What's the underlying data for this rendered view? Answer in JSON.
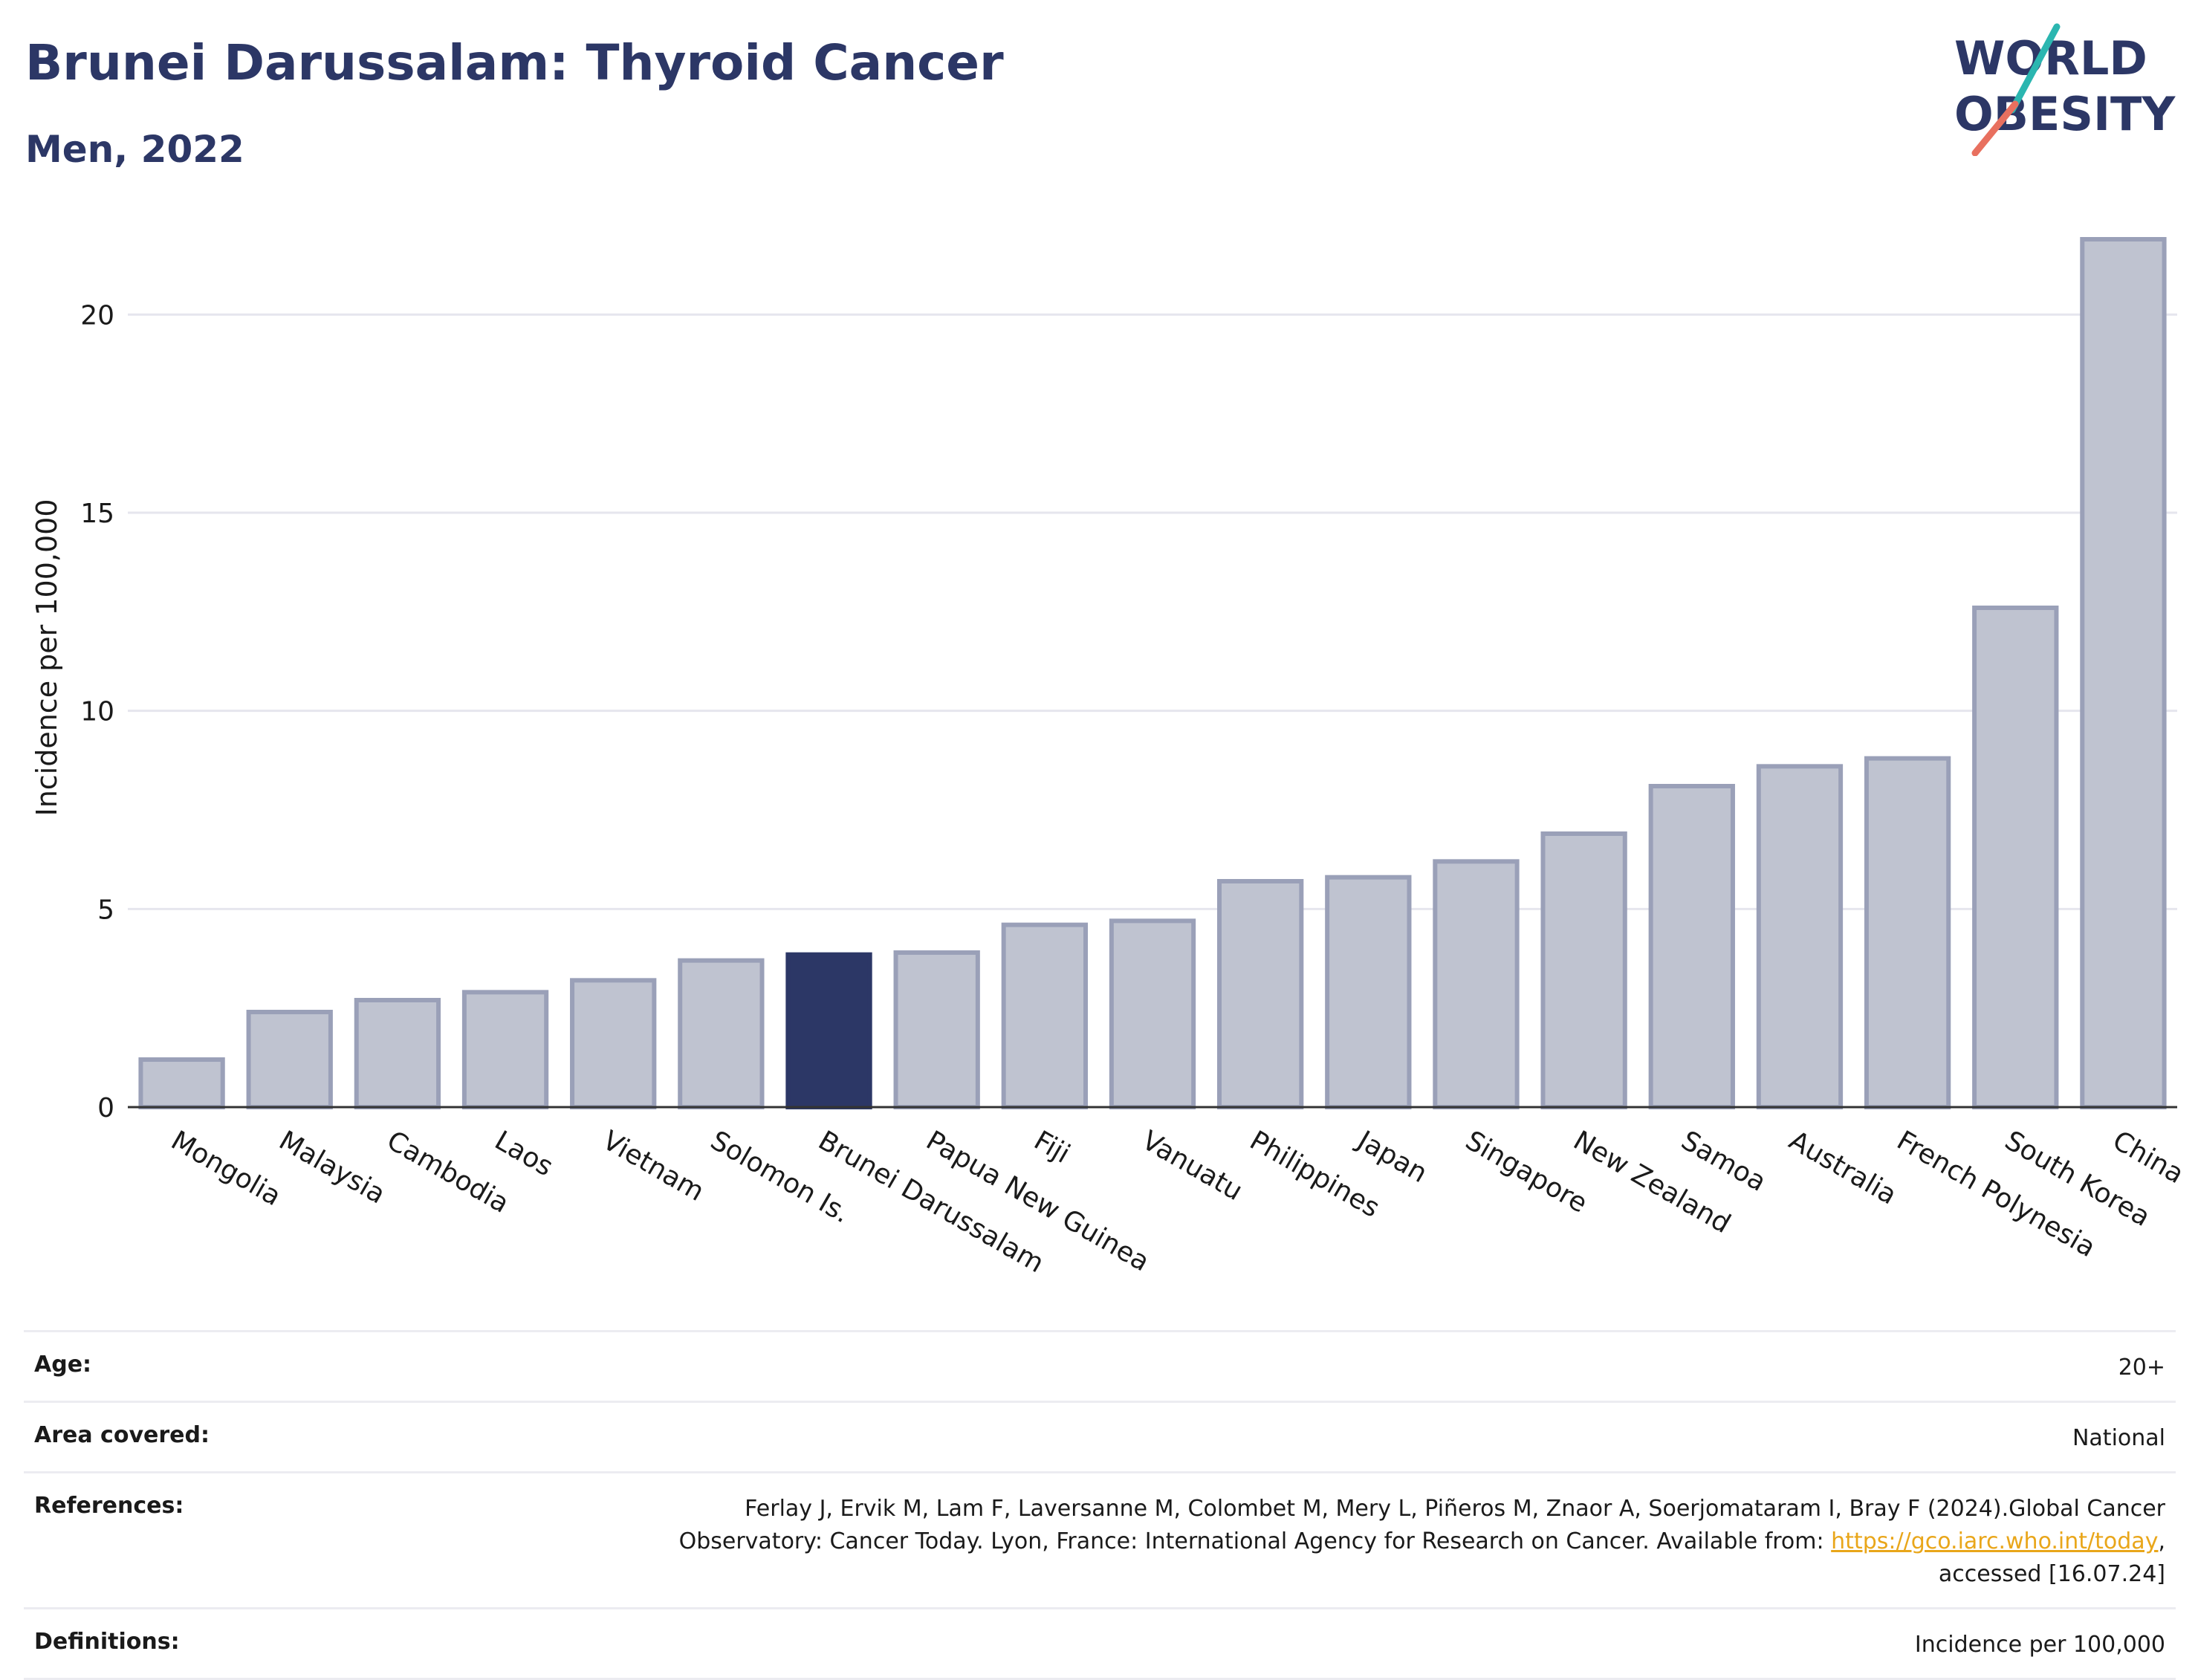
{
  "header": {
    "title": "Brunei Darussalam: Thyroid Cancer",
    "subtitle": "Men, 2022"
  },
  "logo": {
    "line1": "WORLD",
    "line2": "OBESITY",
    "accent_teal": "#2bb6b0",
    "accent_coral": "#e8705f"
  },
  "colors": {
    "highlight": "#2c3766",
    "bar_fill": "#bfc3d0",
    "bar_stroke": "#9aa0b8",
    "grid": "#e6e6ee",
    "axis": "#333333"
  },
  "chart_data": {
    "type": "bar",
    "title": "Brunei Darussalam: Thyroid Cancer",
    "subtitle": "Men, 2022",
    "xlabel": "",
    "ylabel": "Incidence per 100,000",
    "ylim": [
      0,
      22.5
    ],
    "yticks": [
      0,
      5,
      10,
      15,
      20
    ],
    "grid": true,
    "highlight": "Brunei Darussalam",
    "categories": [
      "Mongolia",
      "Malaysia",
      "Cambodia",
      "Laos",
      "Vietnam",
      "Solomon Is.",
      "Brunei Darussalam",
      "Papua New Guinea",
      "Fiji",
      "Vanuatu",
      "Philippines",
      "Japan",
      "Singapore",
      "New Zealand",
      "Samoa",
      "Australia",
      "French Polynesia",
      "South Korea",
      "China"
    ],
    "values": [
      1.2,
      2.4,
      2.7,
      2.9,
      3.2,
      3.7,
      3.85,
      3.9,
      4.6,
      4.7,
      5.7,
      5.8,
      6.2,
      6.9,
      8.1,
      8.6,
      8.8,
      12.6,
      21.9
    ]
  },
  "meta": {
    "age_label": "Age:",
    "age_value": "20+",
    "area_label": "Area covered:",
    "area_value": "National",
    "references_label": "References:",
    "references_line1": "Ferlay J, Ervik M, Lam F, Laversanne M, Colombet M, Mery L, Piñeros M, Znaor A, Soerjomataram I, Bray F (2024).Global Cancer",
    "references_line2_prefix": "Observatory: Cancer Today. Lyon, France: International Agency for Research on Cancer. Available from: ",
    "references_link": "https://gco.iarc.who.int/today",
    "references_line2_suffix": ",",
    "references_line3": "accessed [16.07.24]",
    "definitions_label": "Definitions:",
    "definitions_value": "Incidence per 100,000"
  }
}
